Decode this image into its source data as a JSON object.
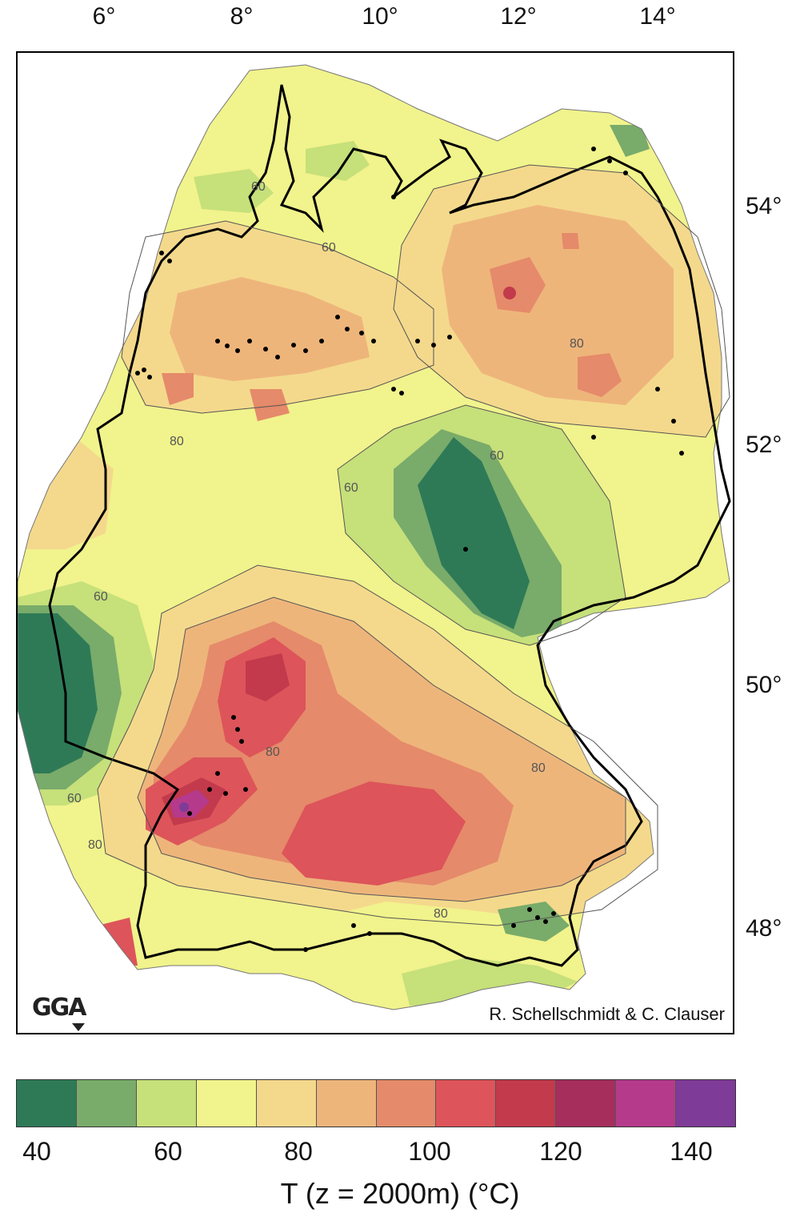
{
  "axes": {
    "longitude_labels": [
      "6°",
      "8°",
      "10°",
      "12°",
      "14°"
    ],
    "latitude_labels": [
      "54°",
      "52°",
      "50°",
      "48°"
    ]
  },
  "map": {
    "credit": "R. Schellschmidt & C. Clauser",
    "logo": "GGA",
    "contour_labels": [
      "60",
      "60",
      "60",
      "60",
      "80",
      "80",
      "80",
      "80",
      "60",
      "80",
      "80",
      "60"
    ]
  },
  "colorbar": {
    "title": "T (z = 2000m) (°C)",
    "tick_labels": [
      "40",
      "60",
      "80",
      "100",
      "120",
      "140"
    ],
    "colors": [
      "#2e7a57",
      "#79ab6a",
      "#c6e07a",
      "#f1f38c",
      "#f4d98c",
      "#eeb57b",
      "#e58a6a",
      "#dd545a",
      "#c23a4c",
      "#a52e5d",
      "#b53a8b",
      "#7f3b98"
    ],
    "bins": [
      [
        35,
        40
      ],
      [
        40,
        50
      ],
      [
        50,
        60
      ],
      [
        60,
        70
      ],
      [
        70,
        80
      ],
      [
        80,
        90
      ],
      [
        90,
        100
      ],
      [
        100,
        110
      ],
      [
        110,
        120
      ],
      [
        120,
        130
      ],
      [
        130,
        140
      ],
      [
        140,
        145
      ]
    ]
  }
}
